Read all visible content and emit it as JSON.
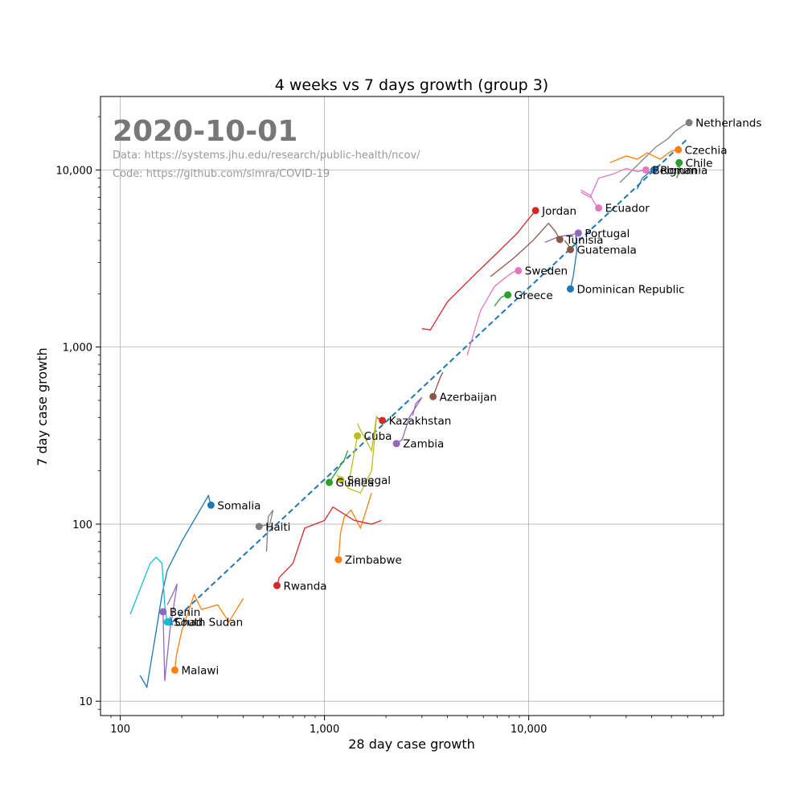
{
  "chart_data": {
    "type": "line",
    "title": "4 weeks vs 7 days growth (group 3)",
    "xlabel": "28 day case growth",
    "ylabel": "7 day case growth",
    "x_scale": "log",
    "y_scale": "log",
    "xlim": [
      80,
      90000
    ],
    "ylim": [
      8.3,
      26000
    ],
    "grid": true,
    "x_ticks": [
      100,
      1000,
      10000
    ],
    "x_tick_labels": [
      "100",
      "1,000",
      "10,000"
    ],
    "y_ticks": [
      10,
      100,
      1000,
      10000
    ],
    "y_tick_labels": [
      "10",
      "100",
      "1,000",
      "10,000"
    ],
    "annotations": {
      "date": "2020-10-01",
      "data_source": "Data: https://systems.jhu.edu/research/public-health/ncov/",
      "code_source": "Code: https://github.com/simra/COVID-19"
    },
    "reference_line": {
      "style": "dashed",
      "color": "#1f77b4",
      "points": [
        [
          180,
          28
        ],
        [
          60000,
          15000
        ]
      ]
    },
    "series": [
      {
        "name": "Netherlands",
        "color": "#7f7f7f",
        "x": 61000,
        "y": 18500,
        "trail": [
          [
            28000,
            8500
          ],
          [
            35000,
            11000
          ],
          [
            42000,
            13500
          ],
          [
            48000,
            15000
          ],
          [
            52000,
            16500
          ],
          [
            57000,
            17800
          ]
        ]
      },
      {
        "name": "Czechia",
        "color": "#ff7f0e",
        "x": 54000,
        "y": 13000,
        "trail": [
          [
            25000,
            11000
          ],
          [
            30000,
            12000
          ],
          [
            34000,
            11500
          ],
          [
            38000,
            12500
          ],
          [
            44000,
            11500
          ],
          [
            50000,
            12800
          ]
        ]
      },
      {
        "name": "Chile",
        "color": "#2ca02c",
        "x": 54500,
        "y": 11000,
        "trail": [
          [
            53000,
            9000
          ],
          [
            55000,
            10000
          ]
        ]
      },
      {
        "name": "Belgium",
        "color": "#e377c2",
        "x": 37500,
        "y": 10000,
        "trail": [
          [
            18000,
            7500
          ],
          [
            20000,
            7000
          ],
          [
            22000,
            9000
          ],
          [
            26000,
            9500
          ],
          [
            30000,
            10200
          ],
          [
            34000,
            9800
          ]
        ]
      },
      {
        "name": "Romania",
        "color": "#1f77b4",
        "x": 41000,
        "y": 10000,
        "trail": [
          [
            34000,
            7800
          ],
          [
            36000,
            9000
          ],
          [
            39000,
            9700
          ]
        ]
      },
      {
        "name": "Jordan",
        "color": "#d62728",
        "x": 10800,
        "y": 5900,
        "trail": [
          [
            3000,
            1270
          ],
          [
            3300,
            1250
          ],
          [
            4000,
            1800
          ],
          [
            5500,
            2600
          ],
          [
            7000,
            3400
          ],
          [
            8800,
            4400
          ],
          [
            10000,
            5300
          ]
        ]
      },
      {
        "name": "Ecuador",
        "color": "#e377c2",
        "x": 22000,
        "y": 6100,
        "trail": [
          [
            18000,
            7700
          ],
          [
            20000,
            7200
          ],
          [
            21000,
            6500
          ]
        ]
      },
      {
        "name": "Portugal",
        "color": "#9467bd",
        "x": 17500,
        "y": 4400,
        "trail": [
          [
            12000,
            3900
          ],
          [
            14000,
            4200
          ],
          [
            16000,
            4300
          ]
        ]
      },
      {
        "name": "Tunisia",
        "color": "#8c564b",
        "x": 14200,
        "y": 4050,
        "trail": [
          [
            6500,
            2500
          ],
          [
            8500,
            3200
          ],
          [
            10500,
            4000
          ],
          [
            12500,
            5000
          ],
          [
            13500,
            4500
          ]
        ]
      },
      {
        "name": "Guatemala",
        "color": "#8c564b",
        "x": 16000,
        "y": 3550,
        "trail": [
          [
            15000,
            4000
          ],
          [
            15800,
            3700
          ]
        ]
      },
      {
        "name": "Sweden",
        "color": "#e377c2",
        "x": 8900,
        "y": 2700,
        "trail": [
          [
            5000,
            900
          ],
          [
            5800,
            1600
          ],
          [
            6800,
            2200
          ],
          [
            7800,
            2500
          ],
          [
            8400,
            2650
          ]
        ]
      },
      {
        "name": "Dominican Republic",
        "color": "#1f77b4",
        "x": 16000,
        "y": 2130,
        "trail": [
          [
            17000,
            4300
          ],
          [
            17200,
            3500
          ],
          [
            16500,
            2500
          ]
        ]
      },
      {
        "name": "Greece",
        "color": "#2ca02c",
        "x": 7900,
        "y": 1970,
        "trail": [
          [
            6800,
            1700
          ],
          [
            7300,
            1900
          ],
          [
            7600,
            1950
          ]
        ]
      },
      {
        "name": "Azerbaijan",
        "color": "#8c564b",
        "x": 3400,
        "y": 525,
        "trail": [
          [
            3800,
            720
          ],
          [
            3700,
            680
          ],
          [
            3550,
            600
          ]
        ]
      },
      {
        "name": "Kazakhstan",
        "color": "#d62728",
        "x": 1920,
        "y": 385,
        "trail": [
          [
            1800,
            400
          ],
          [
            1870,
            390
          ]
        ]
      },
      {
        "name": "Cuba",
        "color": "#bcbd22",
        "x": 1450,
        "y": 315,
        "trail": [
          [
            1450,
            370
          ],
          [
            1500,
            340
          ],
          [
            1700,
            260
          ],
          [
            1800,
            410
          ],
          [
            1700,
            200
          ],
          [
            1500,
            150
          ],
          [
            1300,
            160
          ]
        ]
      },
      {
        "name": "Zambia",
        "color": "#9467bd",
        "x": 2250,
        "y": 285,
        "trail": [
          [
            2700,
            410
          ],
          [
            2800,
            480
          ],
          [
            3000,
            520
          ],
          [
            2600,
            400
          ],
          [
            2400,
            300
          ]
        ]
      },
      {
        "name": "Senegal",
        "color": "#bcbd22",
        "x": 1200,
        "y": 178,
        "trail": [
          [
            1150,
            190
          ],
          [
            1190,
            182
          ]
        ]
      },
      {
        "name": "Guinea",
        "color": "#2ca02c",
        "x": 1055,
        "y": 172,
        "trail": [
          [
            1300,
            260
          ],
          [
            1250,
            230
          ],
          [
            1150,
            200
          ],
          [
            1100,
            185
          ]
        ]
      },
      {
        "name": "Somalia",
        "color": "#1f77b4",
        "x": 278,
        "y": 128,
        "trail": [
          [
            125,
            14
          ],
          [
            135,
            12
          ],
          [
            150,
            25
          ],
          [
            160,
            40
          ],
          [
            170,
            55
          ],
          [
            200,
            80
          ],
          [
            270,
            145
          ]
        ]
      },
      {
        "name": "Haiti",
        "color": "#7f7f7f",
        "x": 478,
        "y": 97,
        "trail": [
          [
            520,
            70
          ],
          [
            530,
            110
          ],
          [
            560,
            120
          ],
          [
            540,
            100
          ]
        ]
      },
      {
        "name": "Zimbabwe",
        "color": "#ff7f0e",
        "x": 1170,
        "y": 63,
        "trail": [
          [
            1700,
            150
          ],
          [
            1600,
            120
          ],
          [
            1500,
            95
          ],
          [
            1350,
            120
          ],
          [
            1250,
            110
          ],
          [
            1200,
            90
          ]
        ]
      },
      {
        "name": "Rwanda",
        "color": "#d62728",
        "x": 585,
        "y": 45,
        "trail": [
          [
            1900,
            105
          ],
          [
            1700,
            100
          ],
          [
            1400,
            105
          ],
          [
            1100,
            125
          ],
          [
            1000,
            105
          ],
          [
            800,
            95
          ],
          [
            700,
            60
          ],
          [
            600,
            50
          ]
        ]
      },
      {
        "name": "Benin",
        "color": "#9467bd",
        "x": 162,
        "y": 32,
        "trail": [
          [
            170,
            35
          ],
          [
            180,
            40
          ],
          [
            190,
            46
          ],
          [
            175,
            25
          ],
          [
            165,
            13
          ]
        ]
      },
      {
        "name": "Chad",
        "color": "#1f77b4",
        "x": 172,
        "y": 28,
        "trail": [
          [
            175,
            30
          ],
          [
            180,
            27
          ]
        ]
      },
      {
        "name": "South Sudan",
        "color": "#17becf",
        "x": 170,
        "y": 28,
        "trail": [
          [
            112,
            31
          ],
          [
            140,
            60
          ],
          [
            150,
            65
          ],
          [
            160,
            60
          ],
          [
            165,
            35
          ],
          [
            168,
            30
          ]
        ]
      },
      {
        "name": "Malawi",
        "color": "#ff7f0e",
        "x": 185,
        "y": 15,
        "trail": [
          [
            400,
            38
          ],
          [
            340,
            28
          ],
          [
            300,
            35
          ],
          [
            250,
            33
          ],
          [
            230,
            40
          ],
          [
            200,
            25
          ],
          [
            188,
            18
          ]
        ]
      }
    ]
  }
}
